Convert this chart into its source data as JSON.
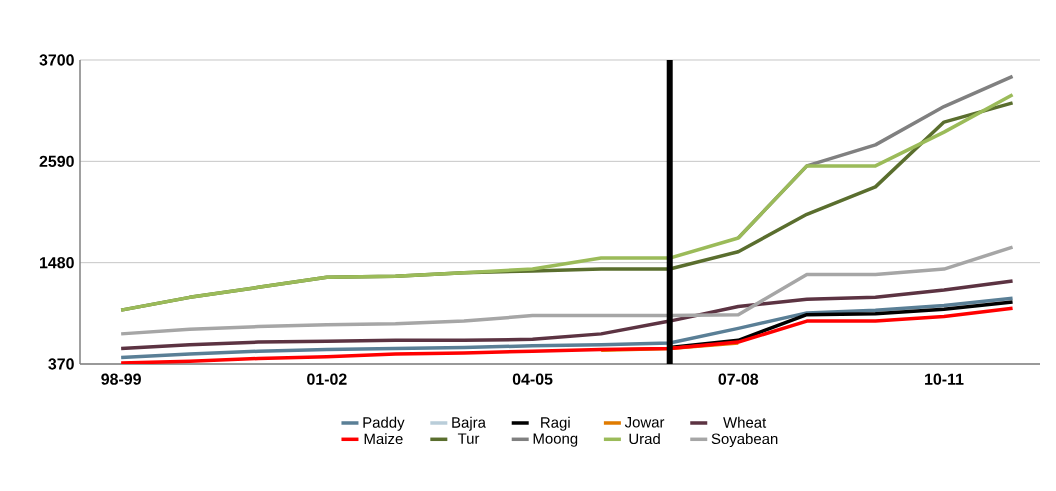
{
  "chart_data": {
    "type": "line",
    "categories": [
      "98-99",
      null,
      null,
      "01-02",
      null,
      null,
      "04-05",
      null,
      null,
      "07-08",
      null,
      null,
      "10-11",
      null
    ],
    "ylim": [
      370,
      3700
    ],
    "yticks": [
      370,
      1480,
      2590,
      3700
    ],
    "grid": "y",
    "legend": "bottom",
    "marker": "none",
    "line_style": "solid",
    "series": [
      {
        "name": "Paddy",
        "color": "#5a7f96",
        "values": [
          440,
          480,
          510,
          530,
          540,
          550,
          570,
          580,
          600,
          760,
          930,
          960,
          1010,
          1090
        ]
      },
      {
        "name": "Bajra",
        "color": "#b9cdd9",
        "values": [
          null,
          null,
          null,
          null,
          null,
          null,
          null,
          null,
          null,
          null,
          null,
          null,
          null,
          null
        ]
      },
      {
        "name": "Ragi",
        "color": "#000000",
        "values": [
          null,
          null,
          null,
          null,
          null,
          null,
          null,
          null,
          550,
          630,
          910,
          920,
          970,
          1050
        ]
      },
      {
        "name": "Jowar",
        "color": "#e07b00",
        "values": [
          null,
          null,
          null,
          null,
          null,
          null,
          null,
          520,
          540,
          600,
          null,
          null,
          null,
          null
        ]
      },
      {
        "name": "Wheat",
        "color": "#5c3342",
        "values": [
          540,
          580,
          610,
          620,
          630,
          630,
          640,
          700,
          840,
          1000,
          1080,
          1100,
          1180,
          1280
        ]
      },
      {
        "name": "Maize",
        "color": "#ff0000",
        "values": [
          380,
          400,
          430,
          450,
          480,
          490,
          510,
          530,
          540,
          610,
          840,
          840,
          890,
          980
        ]
      },
      {
        "name": "Tur",
        "color": "#5a6e2e",
        "values": [
          960,
          1100,
          1210,
          1320,
          1330,
          1370,
          1390,
          1410,
          1410,
          1600,
          2010,
          2310,
          3020,
          3230
        ]
      },
      {
        "name": "Moong",
        "color": "#808080",
        "values": [
          null,
          null,
          null,
          null,
          null,
          null,
          null,
          null,
          null,
          1750,
          2540,
          2770,
          3190,
          3520
        ]
      },
      {
        "name": "Urad",
        "color": "#9bbb59",
        "values": [
          960,
          1100,
          1210,
          1320,
          1330,
          1370,
          1410,
          1530,
          1530,
          1750,
          2540,
          2540,
          2910,
          3320
        ]
      },
      {
        "name": "Soyabean",
        "color": "#a6a6a6",
        "values": [
          700,
          750,
          780,
          800,
          810,
          840,
          900,
          900,
          900,
          910,
          1350,
          1350,
          1410,
          1650
        ]
      }
    ]
  }
}
